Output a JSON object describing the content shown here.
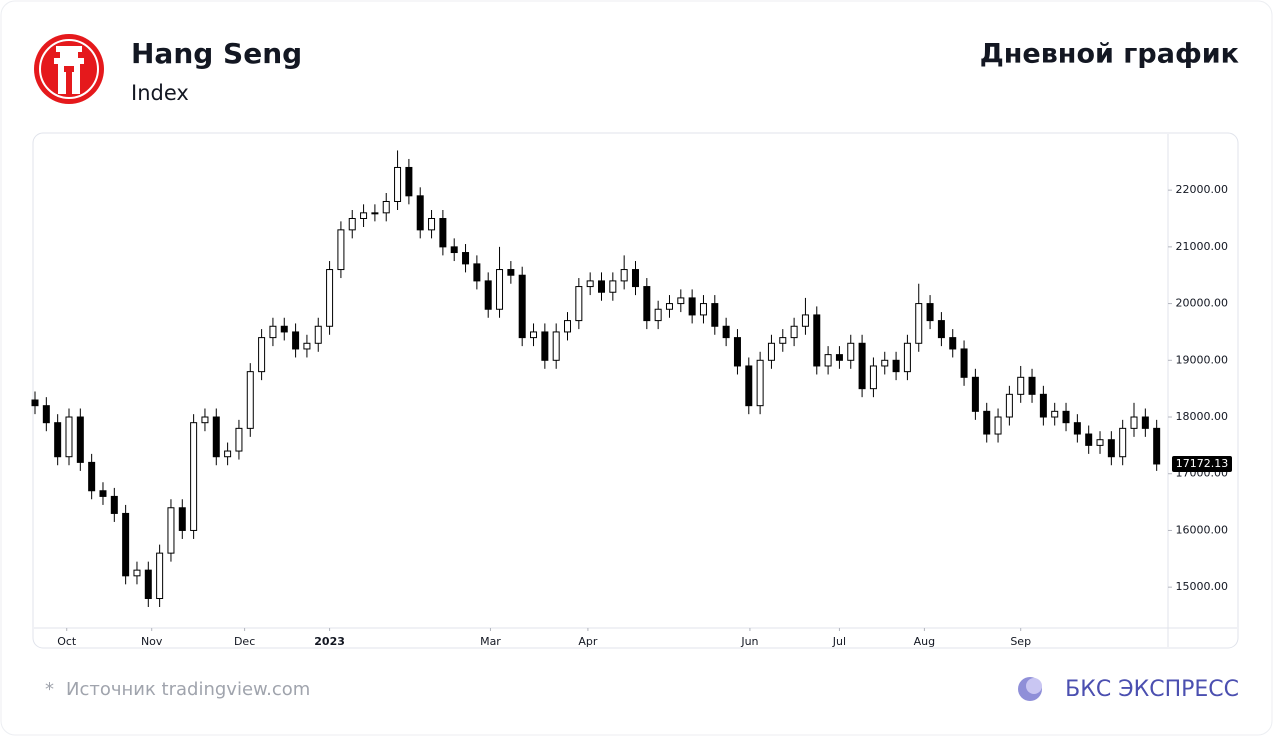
{
  "header": {
    "title": "Hang Seng",
    "subtitle": "Index",
    "chart_label": "Дневной график"
  },
  "chart_data": {
    "type": "candlestick",
    "up_color": "#ffffff",
    "down_color": "#000000",
    "edge_color": "#000000",
    "xlim": [
      0,
      100
    ],
    "ylim": [
      14280,
      22990
    ],
    "xticks": [
      {
        "value": 2.8,
        "label": "Oct"
      },
      {
        "value": 10.3,
        "label": "Nov"
      },
      {
        "value": 18.5,
        "label": "Dec"
      },
      {
        "value": 26,
        "label": "2023"
      },
      {
        "value": 40.2,
        "label": "Mar"
      },
      {
        "value": 48.8,
        "label": "Apr"
      },
      {
        "value": 63.1,
        "label": "Jun"
      },
      {
        "value": 71,
        "label": "Jul"
      },
      {
        "value": 78.5,
        "label": "Aug"
      },
      {
        "value": 87,
        "label": "Sep"
      }
    ],
    "yticks": [
      {
        "value": 15000,
        "label": "15000.00"
      },
      {
        "value": 16000,
        "label": "16000.00"
      },
      {
        "value": 17000,
        "label": "17000.00"
      },
      {
        "value": 18000,
        "label": "18000.00"
      },
      {
        "value": 19000,
        "label": "19000.00"
      },
      {
        "value": 20000,
        "label": "20000.00"
      },
      {
        "value": 21000,
        "label": "21000.00"
      },
      {
        "value": 22000,
        "label": "22000.00"
      }
    ],
    "open": [
      18300,
      18200,
      17900,
      17300,
      18000,
      17200,
      16700,
      16600,
      16300,
      15200,
      15300,
      14800,
      15600,
      16400,
      16000,
      17900,
      18000,
      17300,
      17400,
      17800,
      18800,
      19400,
      19600,
      19500,
      19200,
      19300,
      19600,
      20600,
      21300,
      21500,
      21600,
      21600,
      21800,
      22400,
      21900,
      21300,
      21500,
      21000,
      20900,
      20700,
      20400,
      19900,
      20600,
      20500,
      19400,
      19500,
      19000,
      19500,
      19700,
      20300,
      20400,
      20200,
      20400,
      20600,
      20300,
      19700,
      19900,
      20000,
      20100,
      19800,
      20000,
      19600,
      19400,
      18900,
      18200,
      19000,
      19300,
      19400,
      19600,
      19800,
      18900,
      19100,
      19000,
      19300,
      18500,
      18900,
      19000,
      18800,
      19300,
      20000,
      19700,
      19400,
      19200,
      18700,
      18100,
      17700,
      18000,
      18400,
      18700,
      18400,
      18000,
      18100,
      17900,
      17700,
      17500,
      17600,
      17300,
      17800,
      18000,
      17800
    ],
    "high": [
      18450,
      18350,
      18050,
      18150,
      18150,
      17350,
      16850,
      16750,
      16450,
      15450,
      15450,
      15750,
      16550,
      16550,
      18050,
      18150,
      18150,
      17550,
      17950,
      18950,
      19550,
      19750,
      19750,
      19650,
      19450,
      19750,
      20750,
      21450,
      21650,
      21750,
      21750,
      21950,
      22700,
      22550,
      22050,
      21650,
      21650,
      21150,
      21050,
      20850,
      20550,
      21000,
      20750,
      20650,
      19650,
      19650,
      19650,
      19850,
      20450,
      20550,
      20550,
      20550,
      20850,
      20750,
      20450,
      20050,
      20150,
      20250,
      20250,
      20150,
      20150,
      19750,
      19550,
      19050,
      19150,
      19450,
      19550,
      19750,
      20100,
      19950,
      19250,
      19250,
      19450,
      19450,
      19050,
      19150,
      19150,
      19450,
      20350,
      20150,
      19850,
      19550,
      19350,
      18850,
      18250,
      18150,
      18550,
      18900,
      18850,
      18550,
      18250,
      18250,
      18050,
      17850,
      17750,
      17750,
      17950,
      18250,
      18150,
      17950
    ],
    "low": [
      18050,
      17750,
      17150,
      17150,
      17050,
      16550,
      16450,
      16150,
      15050,
      15050,
      14650,
      14650,
      15450,
      15850,
      15850,
      17750,
      17150,
      17150,
      17250,
      17650,
      18650,
      19250,
      19350,
      19050,
      19050,
      19150,
      19450,
      20450,
      21150,
      21350,
      21450,
      21450,
      21650,
      21750,
      21150,
      21150,
      20850,
      20750,
      20550,
      20250,
      19750,
      19750,
      20350,
      19250,
      19250,
      18850,
      18850,
      19350,
      19550,
      20150,
      20050,
      20050,
      20250,
      20150,
      19550,
      19550,
      19750,
      19850,
      19650,
      19650,
      19450,
      19250,
      18750,
      18050,
      18050,
      18850,
      19150,
      19250,
      19450,
      18750,
      18750,
      18850,
      18850,
      18350,
      18350,
      18750,
      18650,
      18650,
      19150,
      19550,
      19250,
      19050,
      18550,
      17950,
      17550,
      17550,
      17850,
      18250,
      18250,
      17850,
      17850,
      17750,
      17550,
      17350,
      17350,
      17150,
      17150,
      17650,
      17650,
      17050
    ],
    "close": [
      18200,
      17900,
      17300,
      18000,
      17200,
      16700,
      16600,
      16300,
      15200,
      15300,
      14800,
      15600,
      16400,
      16000,
      17900,
      18000,
      17300,
      17400,
      17800,
      18800,
      19400,
      19600,
      19500,
      19200,
      19300,
      19600,
      20600,
      21300,
      21500,
      21600,
      21600,
      21800,
      22400,
      21900,
      21300,
      21500,
      21000,
      20900,
      20700,
      20400,
      19900,
      20600,
      20500,
      19400,
      19500,
      19000,
      19500,
      19700,
      20300,
      20400,
      20200,
      20400,
      20600,
      20300,
      19700,
      19900,
      20000,
      20100,
      19800,
      20000,
      19600,
      19400,
      18900,
      18200,
      19000,
      19300,
      19400,
      19600,
      19800,
      18900,
      19100,
      19000,
      19300,
      18500,
      18900,
      19000,
      18800,
      19300,
      20000,
      19700,
      19400,
      19200,
      18700,
      18100,
      17700,
      18000,
      18400,
      18700,
      18400,
      18000,
      18100,
      17900,
      17700,
      17500,
      17600,
      17300,
      17800,
      18000,
      17800,
      17172.13
    ]
  },
  "footer": {
    "asterisk": "*",
    "source": "Источник tradingview.com",
    "brand": "БКС ЭКСПРЕСС"
  }
}
